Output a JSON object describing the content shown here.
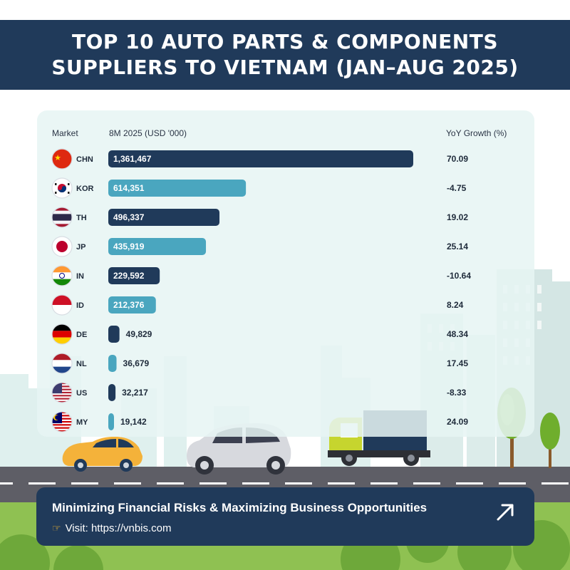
{
  "header": {
    "title_line1": "TOP 10 AUTO PARTS & COMPONENTS",
    "title_line2": "SUPPLIERS TO VIETNAM (JAN–AUG 2025)"
  },
  "columns": {
    "market": "Market",
    "value": "8M 2025 (USD '000)",
    "growth": "YoY Growth (%)"
  },
  "footer": {
    "tagline": "Minimizing Financial Risks & Maximizing Business Opportunities",
    "visit": "Visit: https://vnbis.com",
    "hand_icon": "pointing-hand-icon",
    "arrow_icon": "arrow-up-right-icon"
  },
  "colors": {
    "dark_navy": "#203a5a",
    "teal": "#4aa6bf",
    "road": "#5e5e66",
    "grass": "#8fc152"
  },
  "chart_data": {
    "type": "bar",
    "orientation": "horizontal",
    "categories": [
      "CHN",
      "KOR",
      "TH",
      "JP",
      "IN",
      "ID",
      "DE",
      "NL",
      "US",
      "MY"
    ],
    "flags": [
      "china-flag-icon",
      "south-korea-flag-icon",
      "thailand-flag-icon",
      "japan-flag-icon",
      "india-flag-icon",
      "indonesia-flag-icon",
      "germany-flag-icon",
      "netherlands-flag-icon",
      "usa-flag-icon",
      "malaysia-flag-icon"
    ],
    "values": [
      1361467,
      614351,
      496337,
      435919,
      229592,
      212376,
      49829,
      36679,
      32217,
      19142
    ],
    "value_labels": [
      "1,361,467",
      "614,351",
      "496,337",
      "435,919",
      "229,592",
      "212,376",
      "49,829",
      "36,679",
      "32,217",
      "19,142"
    ],
    "growth": [
      70.09,
      -4.75,
      19.02,
      25.14,
      -10.64,
      8.24,
      48.34,
      17.45,
      -8.33,
      24.09
    ],
    "growth_labels": [
      "70.09",
      "-4.75",
      "19.02",
      "25.14",
      "-10.64",
      "8.24",
      "48.34",
      "17.45",
      "-8.33",
      "24.09"
    ],
    "bar_colors": [
      "#203a5a",
      "#4aa6bf",
      "#203a5a",
      "#4aa6bf",
      "#203a5a",
      "#4aa6bf",
      "#203a5a",
      "#4aa6bf",
      "#203a5a",
      "#4aa6bf"
    ],
    "xlabel": "8M 2025 (USD '000)",
    "ylabel": "Market",
    "grid": false,
    "legend": "none"
  }
}
